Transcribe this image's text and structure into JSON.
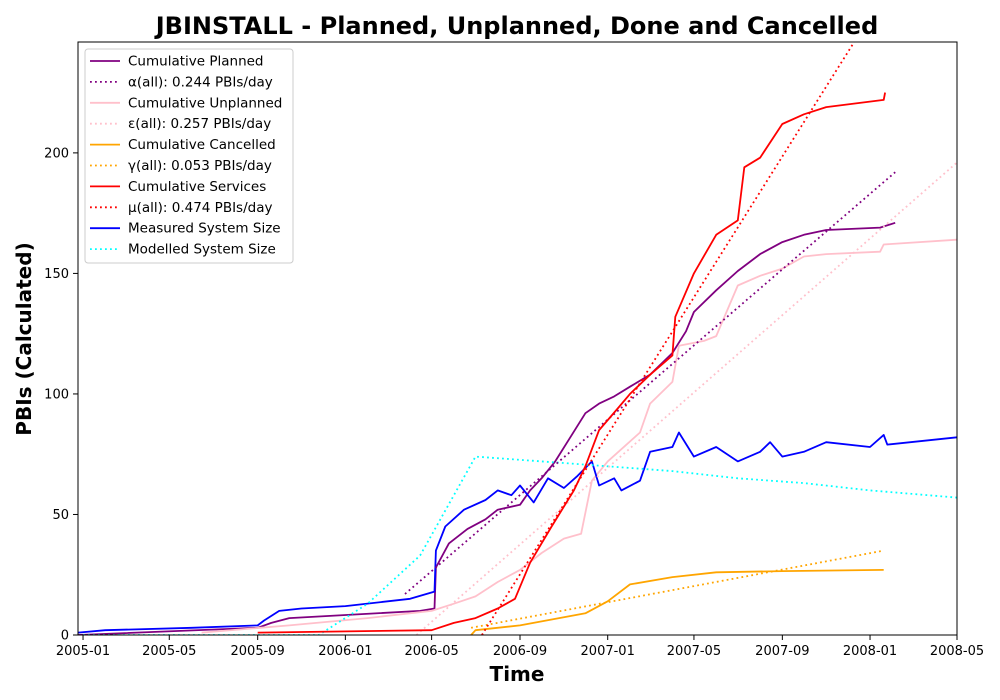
{
  "chart_data": {
    "type": "line",
    "title": "JBINSTALL - Planned, Unplanned, Done  and Cancelled",
    "xlabel": "Time",
    "ylabel": "PBIs (Calculated)",
    "x_type": "date",
    "xlim": [
      "2004-12-25",
      "2008-05-01"
    ],
    "ylim": [
      0,
      246
    ],
    "x_ticks": [
      "2005-01",
      "2005-05",
      "2005-09",
      "2006-01",
      "2006-05",
      "2006-09",
      "2007-01",
      "2007-05",
      "2007-09",
      "2008-01",
      "2008-05"
    ],
    "y_ticks": [
      0,
      50,
      100,
      150,
      200
    ],
    "grid": false,
    "legend_position": "top-left",
    "series": [
      {
        "name": "Cumulative Planned",
        "color": "#800080",
        "style": "solid",
        "points": [
          [
            "2004-12-25",
            0
          ],
          [
            "2005-09-01",
            3
          ],
          [
            "2005-09-20",
            5
          ],
          [
            "2005-10-15",
            7
          ],
          [
            "2006-04-15",
            10
          ],
          [
            "2006-05-05",
            11
          ],
          [
            "2006-05-07",
            28
          ],
          [
            "2006-05-25",
            38
          ],
          [
            "2006-06-20",
            44
          ],
          [
            "2006-07-15",
            48
          ],
          [
            "2006-08-01",
            52
          ],
          [
            "2006-09-01",
            54
          ],
          [
            "2006-09-15",
            60
          ],
          [
            "2006-10-01",
            65
          ],
          [
            "2006-10-20",
            72
          ],
          [
            "2006-11-10",
            82
          ],
          [
            "2006-12-01",
            92
          ],
          [
            "2006-12-20",
            96
          ],
          [
            "2007-01-10",
            99
          ],
          [
            "2007-02-01",
            103
          ],
          [
            "2007-03-01",
            108
          ],
          [
            "2007-04-01",
            117
          ],
          [
            "2007-04-20",
            126
          ],
          [
            "2007-05-01",
            134
          ],
          [
            "2007-06-01",
            143
          ],
          [
            "2007-07-01",
            151
          ],
          [
            "2007-08-01",
            158
          ],
          [
            "2007-09-01",
            163
          ],
          [
            "2007-10-01",
            166
          ],
          [
            "2007-11-01",
            168
          ],
          [
            "2008-01-15",
            169
          ],
          [
            "2008-02-05",
            171
          ]
        ]
      },
      {
        "name": "α(all): 0.244 PBIs/day",
        "color": "#800080",
        "style": "dotted",
        "points": [
          [
            "2006-03-25",
            17
          ],
          [
            "2008-02-05",
            192
          ]
        ]
      },
      {
        "name": "Cumulative Unplanned",
        "color": "#ffc0cb",
        "style": "solid",
        "points": [
          [
            "2005-06-15",
            1
          ],
          [
            "2005-10-15",
            4
          ],
          [
            "2006-02-01",
            7
          ],
          [
            "2006-05-01",
            10
          ],
          [
            "2006-06-01",
            13
          ],
          [
            "2006-07-01",
            16
          ],
          [
            "2006-08-01",
            22
          ],
          [
            "2006-09-01",
            27
          ],
          [
            "2006-10-01",
            34
          ],
          [
            "2006-11-01",
            40
          ],
          [
            "2006-11-25",
            42
          ],
          [
            "2006-12-10",
            64
          ],
          [
            "2007-01-01",
            72
          ],
          [
            "2007-02-15",
            84
          ],
          [
            "2007-03-01",
            96
          ],
          [
            "2007-04-01",
            105
          ],
          [
            "2007-04-10",
            120
          ],
          [
            "2007-05-15",
            122
          ],
          [
            "2007-06-01",
            124
          ],
          [
            "2007-07-01",
            145
          ],
          [
            "2007-08-01",
            149
          ],
          [
            "2007-09-01",
            152
          ],
          [
            "2007-10-01",
            157
          ],
          [
            "2007-11-01",
            158
          ],
          [
            "2008-01-15",
            159
          ],
          [
            "2008-01-20",
            162
          ],
          [
            "2008-05-01",
            164
          ]
        ]
      },
      {
        "name": "ε(all): 0.257 PBIs/day",
        "color": "#ffc0cb",
        "style": "dotted",
        "points": [
          [
            "2006-04-10",
            0
          ],
          [
            "2008-05-01",
            196
          ]
        ]
      },
      {
        "name": "Cumulative Cancelled",
        "color": "#ffa500",
        "style": "solid",
        "points": [
          [
            "2006-06-25",
            0
          ],
          [
            "2006-07-01",
            2
          ],
          [
            "2006-09-01",
            4
          ],
          [
            "2006-12-01",
            9
          ],
          [
            "2007-01-01",
            14
          ],
          [
            "2007-02-01",
            21
          ],
          [
            "2007-04-01",
            24
          ],
          [
            "2007-06-01",
            26
          ],
          [
            "2007-09-01",
            26.5
          ],
          [
            "2008-01-20",
            27
          ]
        ]
      },
      {
        "name": "γ(all): 0.053 PBIs/day",
        "color": "#ffa500",
        "style": "dotted",
        "points": [
          [
            "2006-06-25",
            3
          ],
          [
            "2008-01-20",
            35
          ]
        ]
      },
      {
        "name": "Cumulative Services",
        "color": "#ff0000",
        "style": "solid",
        "points": [
          [
            "2005-09-01",
            1
          ],
          [
            "2006-05-01",
            2
          ],
          [
            "2006-06-01",
            5
          ],
          [
            "2006-07-01",
            7
          ],
          [
            "2006-08-01",
            11
          ],
          [
            "2006-08-25",
            15
          ],
          [
            "2006-09-15",
            30
          ],
          [
            "2006-10-15",
            45
          ],
          [
            "2006-11-15",
            60
          ],
          [
            "2006-12-01",
            70
          ],
          [
            "2006-12-20",
            85
          ],
          [
            "2007-01-15",
            94
          ],
          [
            "2007-02-01",
            100
          ],
          [
            "2007-03-01",
            108
          ],
          [
            "2007-04-01",
            116
          ],
          [
            "2007-04-05",
            132
          ],
          [
            "2007-05-01",
            150
          ],
          [
            "2007-06-01",
            166
          ],
          [
            "2007-07-01",
            172
          ],
          [
            "2007-07-10",
            194
          ],
          [
            "2007-08-01",
            198
          ],
          [
            "2007-09-01",
            212
          ],
          [
            "2007-10-01",
            216
          ],
          [
            "2007-11-01",
            219
          ],
          [
            "2008-01-20",
            222
          ],
          [
            "2008-01-22",
            225
          ]
        ]
      },
      {
        "name": "μ(all): 0.474 PBIs/day",
        "color": "#ff0000",
        "style": "dotted",
        "points": [
          [
            "2006-07-10",
            0
          ],
          [
            "2007-12-10",
            246
          ]
        ]
      },
      {
        "name": "Measured System Size",
        "color": "#0000ff",
        "style": "solid",
        "points": [
          [
            "2004-12-25",
            1
          ],
          [
            "2005-02-01",
            2
          ],
          [
            "2005-06-01",
            3
          ],
          [
            "2005-09-01",
            4
          ],
          [
            "2005-09-10",
            6
          ],
          [
            "2005-10-01",
            10
          ],
          [
            "2005-11-01",
            11
          ],
          [
            "2006-01-01",
            12
          ],
          [
            "2006-04-01",
            15
          ],
          [
            "2006-05-05",
            18
          ],
          [
            "2006-05-07",
            35
          ],
          [
            "2006-05-20",
            45
          ],
          [
            "2006-06-15",
            52
          ],
          [
            "2006-07-15",
            56
          ],
          [
            "2006-08-01",
            60
          ],
          [
            "2006-08-20",
            58
          ],
          [
            "2006-09-01",
            62
          ],
          [
            "2006-09-20",
            55
          ],
          [
            "2006-10-10",
            65
          ],
          [
            "2006-11-01",
            61
          ],
          [
            "2006-11-20",
            66
          ],
          [
            "2006-12-10",
            72
          ],
          [
            "2006-12-20",
            62
          ],
          [
            "2007-01-10",
            65
          ],
          [
            "2007-01-20",
            60
          ],
          [
            "2007-02-15",
            64
          ],
          [
            "2007-03-01",
            76
          ],
          [
            "2007-04-01",
            78
          ],
          [
            "2007-04-10",
            84
          ],
          [
            "2007-05-01",
            74
          ],
          [
            "2007-06-01",
            78
          ],
          [
            "2007-07-01",
            72
          ],
          [
            "2007-08-01",
            76
          ],
          [
            "2007-08-15",
            80
          ],
          [
            "2007-09-01",
            74
          ],
          [
            "2007-10-01",
            76
          ],
          [
            "2007-11-01",
            80
          ],
          [
            "2008-01-01",
            78
          ],
          [
            "2008-01-20",
            83
          ],
          [
            "2008-01-25",
            79
          ],
          [
            "2008-05-01",
            82
          ]
        ]
      },
      {
        "name": "Modelled System Size",
        "color": "#00ffff",
        "style": "dotted",
        "points": [
          [
            "2005-01-01",
            0
          ],
          [
            "2005-11-25",
            0
          ],
          [
            "2006-02-01",
            13
          ],
          [
            "2006-04-15",
            33
          ],
          [
            "2006-07-01",
            74
          ],
          [
            "2006-10-01",
            72
          ],
          [
            "2007-01-01",
            70
          ],
          [
            "2007-04-01",
            68
          ],
          [
            "2007-07-01",
            65
          ],
          [
            "2007-10-01",
            63
          ],
          [
            "2008-01-01",
            60
          ],
          [
            "2008-05-01",
            57
          ]
        ]
      }
    ]
  }
}
